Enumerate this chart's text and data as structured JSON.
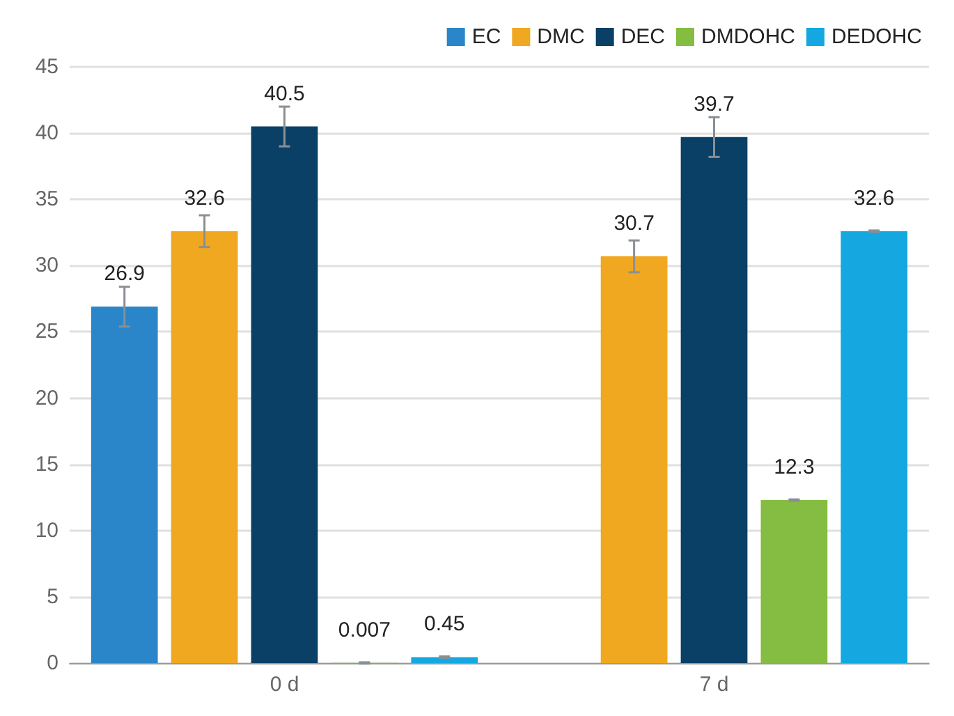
{
  "chart_data": {
    "type": "bar",
    "categories": [
      "0 d",
      "7 d"
    ],
    "series": [
      {
        "name": "EC",
        "color": "#2a86c8",
        "values": [
          26.9,
          null
        ],
        "errors": [
          1.5,
          null
        ]
      },
      {
        "name": "DMC",
        "color": "#f0a820",
        "values": [
          32.6,
          30.7
        ],
        "errors": [
          1.2,
          1.2
        ]
      },
      {
        "name": "DEC",
        "color": "#0b4066",
        "values": [
          40.5,
          39.7
        ],
        "errors": [
          1.5,
          1.5
        ]
      },
      {
        "name": "DMDOHC",
        "color": "#84bd41",
        "values": [
          0.007,
          12.3
        ],
        "errors": [
          0.05,
          0.05
        ]
      },
      {
        "name": "DEDOHC",
        "color": "#15a8e0",
        "values": [
          0.45,
          32.6
        ],
        "errors": [
          0.05,
          0.05
        ]
      }
    ],
    "ylim": [
      0,
      45
    ],
    "yticks": [
      0,
      5,
      10,
      15,
      20,
      25,
      30,
      35,
      40,
      45
    ],
    "grid": "y",
    "legend": "top right",
    "data_labels": true
  }
}
